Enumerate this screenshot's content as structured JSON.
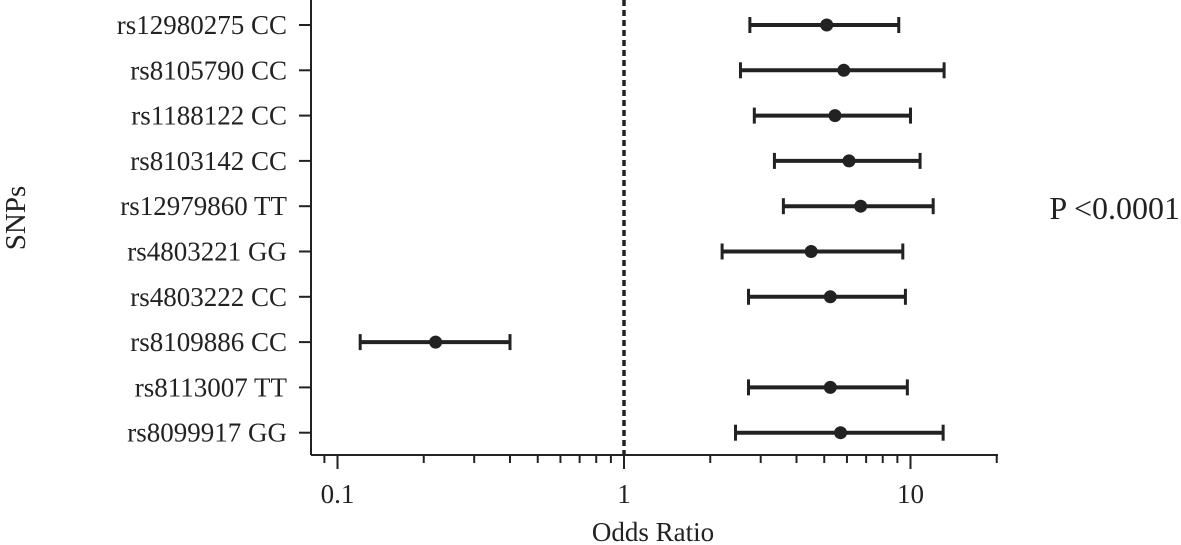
{
  "chart_data": {
    "type": "forest",
    "title": "",
    "xlabel": "Odds Ratio",
    "ylabel": "SNPs",
    "x_scale": "log",
    "xlim": [
      0.07,
      20
    ],
    "xticks_major": [
      0.1,
      1,
      10
    ],
    "xtick_labels": [
      "0.1",
      "1",
      "10"
    ],
    "reference_line": 1,
    "annotation": "P <0.0001",
    "rows": [
      {
        "label": "rs12980275 CC",
        "or": 5.1,
        "lower": 2.75,
        "upper": 9.1
      },
      {
        "label": "rs8105790 CC",
        "or": 5.85,
        "lower": 2.55,
        "upper": 13.1
      },
      {
        "label": "rs1188122 CC",
        "or": 5.45,
        "lower": 2.85,
        "upper": 10.0
      },
      {
        "label": "rs8103142 CC",
        "or": 6.1,
        "lower": 3.35,
        "upper": 10.8
      },
      {
        "label": "rs12979860 TT",
        "or": 6.7,
        "lower": 3.6,
        "upper": 12.0
      },
      {
        "label": "rs4803221 GG",
        "or": 4.5,
        "lower": 2.2,
        "upper": 9.4
      },
      {
        "label": "rs4803222 CC",
        "or": 5.25,
        "lower": 2.72,
        "upper": 9.6
      },
      {
        "label": "rs8109886 CC",
        "or": 0.22,
        "lower": 0.12,
        "upper": 0.4
      },
      {
        "label": "rs8113007 TT",
        "or": 5.25,
        "lower": 2.72,
        "upper": 9.75
      },
      {
        "label": "rs8099917 GG",
        "or": 5.7,
        "lower": 2.45,
        "upper": 13.0
      }
    ],
    "colors": {
      "marks": "#222222",
      "background": "#ffffff"
    }
  }
}
